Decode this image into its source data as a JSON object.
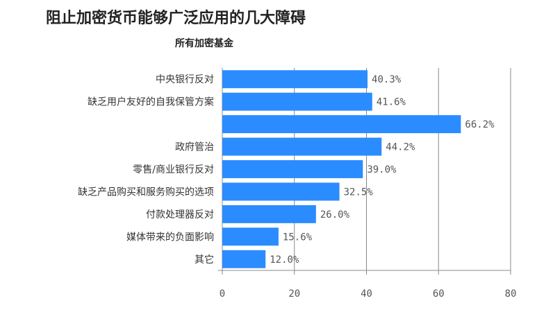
{
  "chart_data": {
    "type": "bar",
    "orientation": "horizontal",
    "title": "阻止加密货币能够广泛应用的几大障碍",
    "subtitle": "所有加密基金",
    "categories": [
      "中央银行反对",
      "缺乏用户友好的自我保管方案",
      "",
      "政府管治",
      "零售/商业银行反对",
      "缺乏产品购买和服务购买的选项",
      "付款处理器反对",
      "媒体带来的负面影响",
      "其它"
    ],
    "values": [
      40.3,
      41.6,
      66.2,
      44.2,
      39.0,
      32.5,
      26.0,
      15.6,
      12.0
    ],
    "value_labels": [
      "40.3%",
      "41.6%",
      "66.2%",
      "44.2%",
      "39.0%",
      "32.5%",
      "26.0%",
      "15.6%",
      "12.0%"
    ],
    "xlim": [
      0,
      80
    ],
    "xticks": [
      "0",
      "20",
      "40",
      "60",
      "80"
    ],
    "grid": true,
    "bar_color": "#2b8cff"
  }
}
